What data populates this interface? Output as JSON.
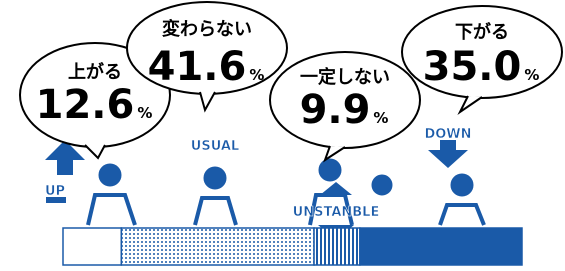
{
  "chart_data": {
    "type": "stacked-bar",
    "categories": [
      "上がる",
      "変わらない",
      "一定しない",
      "下がる"
    ],
    "values": [
      12.6,
      41.6,
      9.9,
      35.0
    ],
    "value_labels": [
      "12.6",
      "41.6",
      "9.9",
      "35.0"
    ],
    "unit": "%",
    "icon_labels": [
      "UP",
      "USUAL",
      "UNSTANBLE",
      "DOWN"
    ],
    "color": "#1a5aa8"
  }
}
